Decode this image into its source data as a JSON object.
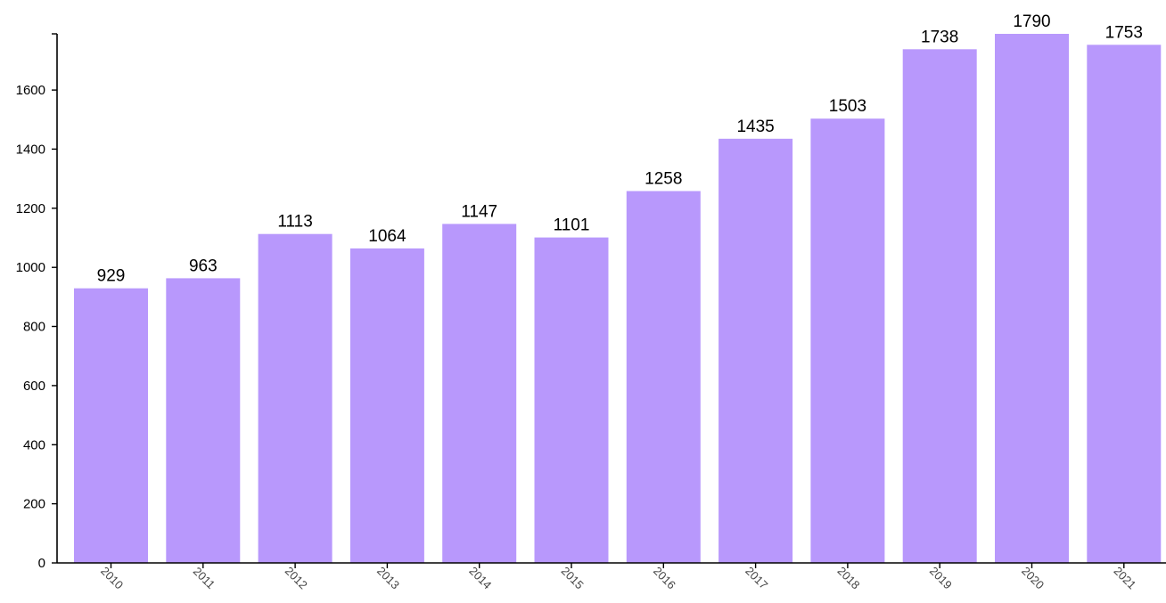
{
  "colors": {
    "bar": "#b898fc",
    "axis": "#000000",
    "label": "#000000"
  },
  "chart_data": {
    "type": "bar",
    "title": "",
    "xlabel": "",
    "ylabel": "",
    "categories": [
      "2010",
      "2011",
      "2012",
      "2013",
      "2014",
      "2015",
      "2016",
      "2017",
      "2018",
      "2019",
      "2020",
      "2021"
    ],
    "values": [
      929,
      963,
      1113,
      1064,
      1147,
      1101,
      1258,
      1435,
      1503,
      1738,
      1790,
      1753
    ],
    "data_labels": [
      "929",
      "963",
      "1113",
      "1064",
      "1147",
      "1101",
      "1258",
      "1435",
      "1503",
      "1738",
      "1790",
      "1753"
    ],
    "ylim": [
      0,
      1790
    ],
    "y_ticks": [
      0,
      200,
      400,
      600,
      800,
      1000,
      1200,
      1400,
      1600
    ],
    "y_tick_labels": [
      "0",
      "200",
      "400",
      "600",
      "800",
      "1000",
      "1200",
      "1400",
      "1600"
    ],
    "grid": false,
    "legend": "none",
    "x_tick_rotation_deg": 45
  }
}
